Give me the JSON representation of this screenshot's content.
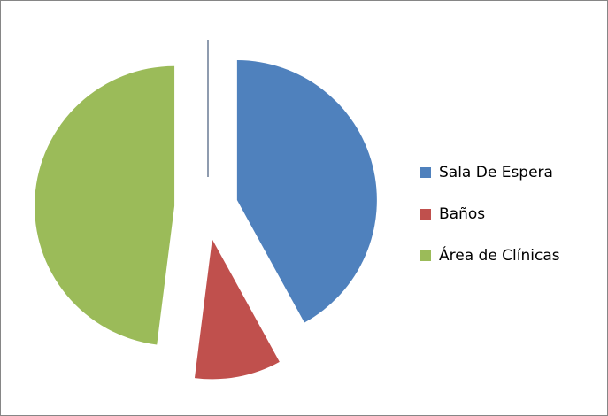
{
  "chart_data": {
    "type": "pie",
    "categories": [
      "Sala De Espera",
      "Baños",
      "Área de Clínicas"
    ],
    "values": [
      42,
      10,
      48
    ],
    "colors": [
      "#4f81bd",
      "#c0504d",
      "#9bbb59"
    ],
    "exploded": true,
    "legend": "right"
  }
}
